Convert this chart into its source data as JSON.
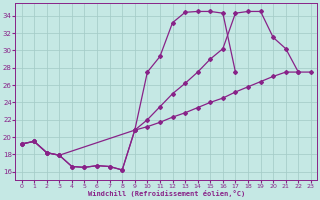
{
  "xlabel": "Windchill (Refroidissement éolien,°C)",
  "xlim": [
    -0.5,
    23.5
  ],
  "ylim": [
    15.0,
    35.5
  ],
  "xticks": [
    0,
    1,
    2,
    3,
    4,
    5,
    6,
    7,
    8,
    9,
    10,
    11,
    12,
    13,
    14,
    15,
    16,
    17,
    18,
    19,
    20,
    21,
    22,
    23
  ],
  "yticks": [
    16,
    18,
    20,
    22,
    24,
    26,
    28,
    30,
    32,
    34
  ],
  "bg_color": "#c5e8e4",
  "grid_color": "#a5ccc8",
  "line_color": "#882288",
  "curve1_x": [
    0,
    1,
    2,
    3,
    4,
    5,
    6,
    7,
    8,
    9,
    10,
    11,
    12,
    13,
    14,
    15,
    16,
    17
  ],
  "curve1_y": [
    19.2,
    19.5,
    18.2,
    17.9,
    16.6,
    16.5,
    16.7,
    16.6,
    16.2,
    20.8,
    27.5,
    29.3,
    33.2,
    34.4,
    34.5,
    34.5,
    34.3,
    27.5
  ],
  "curve2_x": [
    0,
    1,
    2,
    3,
    9,
    10,
    11,
    12,
    13,
    14,
    15,
    16,
    17,
    18,
    19,
    20,
    21,
    22
  ],
  "curve2_y": [
    19.2,
    19.5,
    18.2,
    17.9,
    20.8,
    22.0,
    23.5,
    25.0,
    26.2,
    27.5,
    29.0,
    30.2,
    34.3,
    34.5,
    34.5,
    31.5,
    30.2,
    27.5
  ],
  "curve3_x": [
    0,
    1,
    2,
    3,
    4,
    5,
    6,
    7,
    8,
    9,
    10,
    11,
    12,
    13,
    14,
    15,
    16,
    17,
    18,
    19,
    20,
    21,
    22,
    23
  ],
  "curve3_y": [
    19.2,
    19.5,
    18.2,
    17.9,
    16.6,
    16.5,
    16.7,
    16.6,
    16.2,
    20.8,
    21.2,
    21.7,
    22.3,
    22.8,
    23.4,
    24.0,
    24.5,
    25.2,
    25.8,
    26.4,
    27.0,
    27.5,
    27.5,
    27.5
  ],
  "marker": "D",
  "markersize": 2.0,
  "linewidth": 0.9
}
